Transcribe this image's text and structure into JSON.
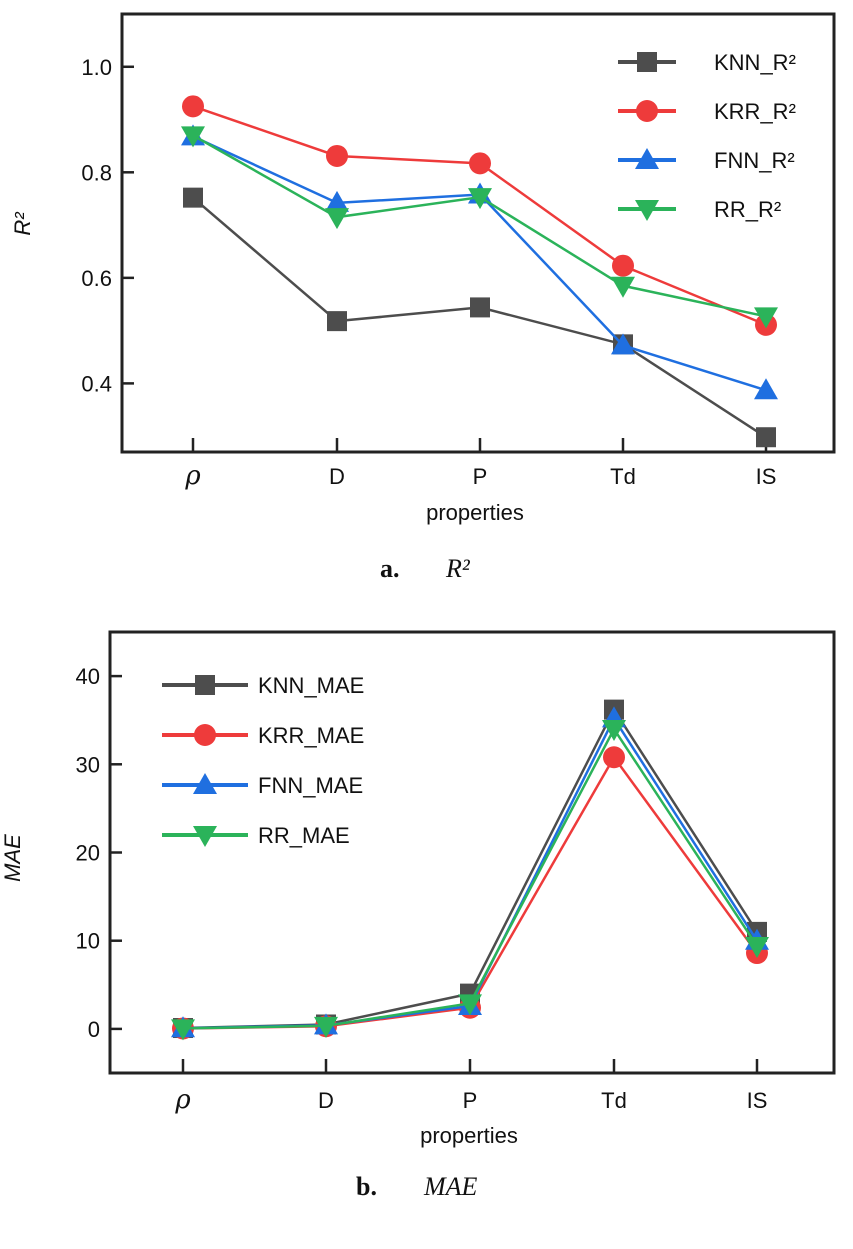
{
  "chart_data": [
    {
      "type": "line",
      "panel": "a",
      "caption_letter": "a.",
      "caption_text": "R²",
      "categories": [
        "ρ",
        "D",
        "P",
        "Td",
        "IS"
      ],
      "xlabel": "properties",
      "ylabel": "R²",
      "ylim": [
        0.27,
        1.1
      ],
      "yticks": [
        "0.4",
        "0.6",
        "0.8",
        "1.0"
      ],
      "ytick_values": [
        0.4,
        0.6,
        0.8,
        1.0
      ],
      "legend_position": "top-right",
      "series": [
        {
          "name": "KNN_R²",
          "values": [
            0.752,
            0.518,
            0.544,
            0.474,
            0.298
          ],
          "color": "#4d4d4d",
          "marker": "square"
        },
        {
          "name": "KRR_R²",
          "values": [
            0.925,
            0.831,
            0.817,
            0.623,
            0.511
          ],
          "color": "#ee3b3b",
          "marker": "circle"
        },
        {
          "name": "FNN_R²",
          "values": [
            0.868,
            0.742,
            0.758,
            0.472,
            0.387
          ],
          "color": "#1f6fe0",
          "marker": "triangle-up"
        },
        {
          "name": "RR_R²",
          "values": [
            0.87,
            0.715,
            0.753,
            0.585,
            0.527
          ],
          "color": "#2bb35a",
          "marker": "triangle-down"
        }
      ]
    },
    {
      "type": "line",
      "panel": "b",
      "caption_letter": "b.",
      "caption_text": "MAE",
      "categories": [
        "ρ",
        "D",
        "P",
        "Td",
        "IS"
      ],
      "xlabel": "properties",
      "ylabel": "MAE",
      "ylim": [
        -5,
        45
      ],
      "yticks": [
        "0",
        "10",
        "20",
        "30",
        "40"
      ],
      "ytick_values": [
        0,
        10,
        20,
        30,
        40
      ],
      "legend_position": "top-left",
      "series": [
        {
          "name": "KNN_MAE",
          "values": [
            0.1,
            0.5,
            4.0,
            36.2,
            11.0
          ],
          "color": "#4d4d4d",
          "marker": "square"
        },
        {
          "name": "KRR_MAE",
          "values": [
            0.05,
            0.3,
            2.4,
            30.8,
            8.6
          ],
          "color": "#ee3b3b",
          "marker": "circle"
        },
        {
          "name": "FNN_MAE",
          "values": [
            0.08,
            0.4,
            2.6,
            35.2,
            10.0
          ],
          "color": "#1f6fe0",
          "marker": "triangle-up"
        },
        {
          "name": "RR_MAE",
          "values": [
            0.06,
            0.35,
            2.9,
            34.0,
            9.4
          ],
          "color": "#2bb35a",
          "marker": "triangle-down"
        }
      ]
    }
  ]
}
